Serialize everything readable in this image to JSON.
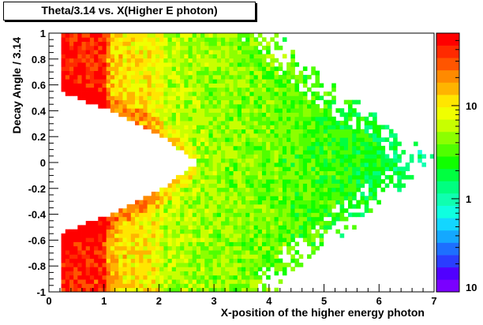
{
  "chart_data": {
    "type": "heatmap",
    "title": "Theta/3.14 vs. X(Higher E photon)",
    "xlabel": "X-position of the higher energy photon",
    "ylabel": "Decay Angle / 3.14",
    "xlim": [
      0,
      7
    ],
    "ylim": [
      -1,
      1
    ],
    "x_ticks": [
      "0",
      "1",
      "2",
      "3",
      "4",
      "5",
      "6",
      "7"
    ],
    "y_ticks": [
      "-1",
      "-0.8",
      "-0.6",
      "-0.4",
      "-0.2",
      "0",
      "0.2",
      "0.4",
      "0.6",
      "0.8",
      "1"
    ],
    "colorbar": {
      "scale": "log",
      "labels": [
        "10",
        "1",
        "10"
      ],
      "range_approx": [
        0.1,
        60
      ],
      "colors": [
        "#7a00ff",
        "#5000ff",
        "#2a3dff",
        "#1d6fff",
        "#14a8ff",
        "#13d6ff",
        "#0fffe0",
        "#0fffb0",
        "#00ff80",
        "#00ff40",
        "#10ff00",
        "#50ff00",
        "#8cff00",
        "#c8ff00",
        "#f0ff00",
        "#ffe600",
        "#ffb400",
        "#ff8a00",
        "#ff5500",
        "#ff2a00",
        "#ff0000"
      ]
    },
    "density_model": {
      "description": "Counts per bin (x: 0.0745 wide, y: 0.0323 tall); empty region inside the V-shaped boundary",
      "bins_x": 94,
      "bins_y": 62,
      "boundary": [
        {
          "x": 0.2,
          "abs_y_min": 0.55
        },
        {
          "x": 1.0,
          "abs_y_min": 0.42
        },
        {
          "x": 2.0,
          "abs_y_min": 0.22
        },
        {
          "x": 2.7,
          "abs_y_min": 0.0
        }
      ],
      "outer_edge": [
        {
          "abs_y": 1.0,
          "x_max": 4.0
        },
        {
          "abs_y": 0.5,
          "x_max": 5.3
        },
        {
          "abs_y": 0.0,
          "x_max": 6.95
        }
      ],
      "level_by_x": [
        {
          "x": 0.2,
          "value": 50
        },
        {
          "x": 1.0,
          "value": 40
        },
        {
          "x": 1.1,
          "value": 14
        },
        {
          "x": 2.0,
          "value": 9
        },
        {
          "x": 2.1,
          "value": 6
        },
        {
          "x": 3.0,
          "value": 5
        },
        {
          "x": 4.0,
          "value": 4
        },
        {
          "x": 5.0,
          "value": 3
        },
        {
          "x": 6.0,
          "value": 2
        },
        {
          "x": 7.0,
          "value": 1
        }
      ]
    }
  }
}
